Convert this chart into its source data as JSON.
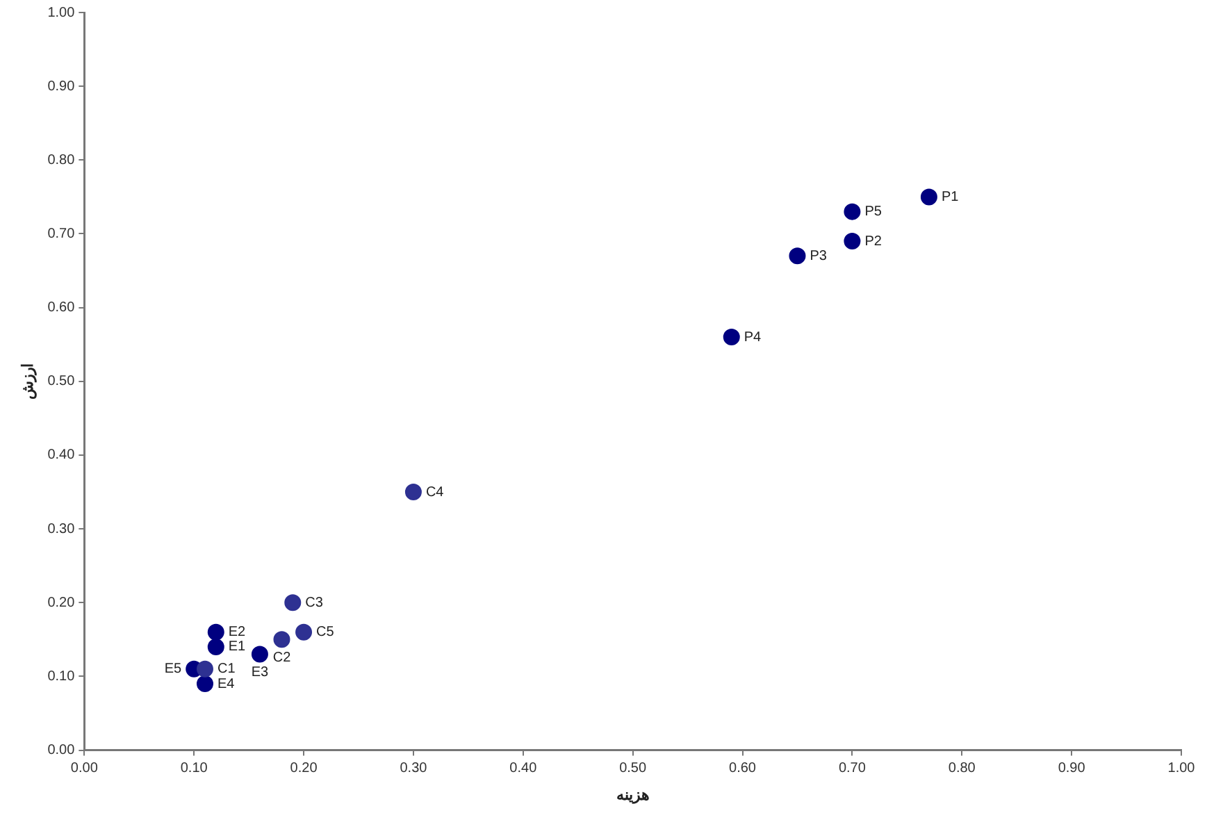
{
  "chart_data": {
    "type": "scatter",
    "xlabel": "هزینه",
    "ylabel": "ارزش",
    "xlim": [
      0,
      1
    ],
    "ylim": [
      0,
      1
    ],
    "xticks": [
      {
        "value": 0,
        "label": "0.00"
      },
      {
        "value": 0.1,
        "label": "0.10"
      },
      {
        "value": 0.2,
        "label": "0.20"
      },
      {
        "value": 0.3,
        "label": "0.30"
      },
      {
        "value": 0.4,
        "label": "0.40"
      },
      {
        "value": 0.5,
        "label": "0.50"
      },
      {
        "value": 0.6,
        "label": "0.60"
      },
      {
        "value": 0.7,
        "label": "0.70"
      },
      {
        "value": 0.8,
        "label": "0.80"
      },
      {
        "value": 0.9,
        "label": "0.90"
      },
      {
        "value": 1,
        "label": "1.00"
      }
    ],
    "yticks": [
      {
        "value": 0,
        "label": "0.00"
      },
      {
        "value": 0.1,
        "label": "0.10"
      },
      {
        "value": 0.2,
        "label": "0.20"
      },
      {
        "value": 0.3,
        "label": "0.30"
      },
      {
        "value": 0.4,
        "label": "0.40"
      },
      {
        "value": 0.5,
        "label": "0.50"
      },
      {
        "value": 0.6,
        "label": "0.60"
      },
      {
        "value": 0.7,
        "label": "0.70"
      },
      {
        "value": 0.8,
        "label": "0.80"
      },
      {
        "value": 0.9,
        "label": "0.90"
      },
      {
        "value": 1,
        "label": "1.00"
      }
    ],
    "grid": false,
    "legend": false,
    "marker": "circle",
    "series": [
      {
        "color": "#000080",
        "x": [
          0.77,
          0.7,
          0.65,
          0.59,
          0.7
        ],
        "values": [
          0.75,
          0.69,
          0.67,
          0.56,
          0.73
        ]
      },
      {
        "color": "#2e3192",
        "x": [
          0.11,
          0.18,
          0.19,
          0.3,
          0.2
        ],
        "values": [
          0.11,
          0.15,
          0.2,
          0.35,
          0.16
        ]
      },
      {
        "color": "#000080",
        "x": [
          0.12,
          0.12,
          0.16,
          0.11,
          0.1
        ],
        "values": [
          0.14,
          0.16,
          0.13,
          0.09,
          0.11
        ]
      }
    ],
    "annotations": [
      {
        "text": "P1",
        "x": 0.77,
        "y": 0.75
      },
      {
        "text": "P2",
        "x": 0.7,
        "y": 0.69
      },
      {
        "text": "P3",
        "x": 0.65,
        "y": 0.67
      },
      {
        "text": "P4",
        "x": 0.59,
        "y": 0.56
      },
      {
        "text": "P5",
        "x": 0.7,
        "y": 0.73
      },
      {
        "text": "C1",
        "x": 0.11,
        "y": 0.11
      },
      {
        "text": "C2",
        "x": 0.18,
        "y": 0.15
      },
      {
        "text": "C3",
        "x": 0.19,
        "y": 0.2
      },
      {
        "text": "C4",
        "x": 0.3,
        "y": 0.35
      },
      {
        "text": "C5",
        "x": 0.2,
        "y": 0.16
      },
      {
        "text": "E1",
        "x": 0.12,
        "y": 0.14
      },
      {
        "text": "E2",
        "x": 0.12,
        "y": 0.16
      },
      {
        "text": "E3",
        "x": 0.16,
        "y": 0.13
      },
      {
        "text": "E4",
        "x": 0.11,
        "y": 0.09
      },
      {
        "text": "E5",
        "x": 0.1,
        "y": 0.11
      }
    ]
  }
}
